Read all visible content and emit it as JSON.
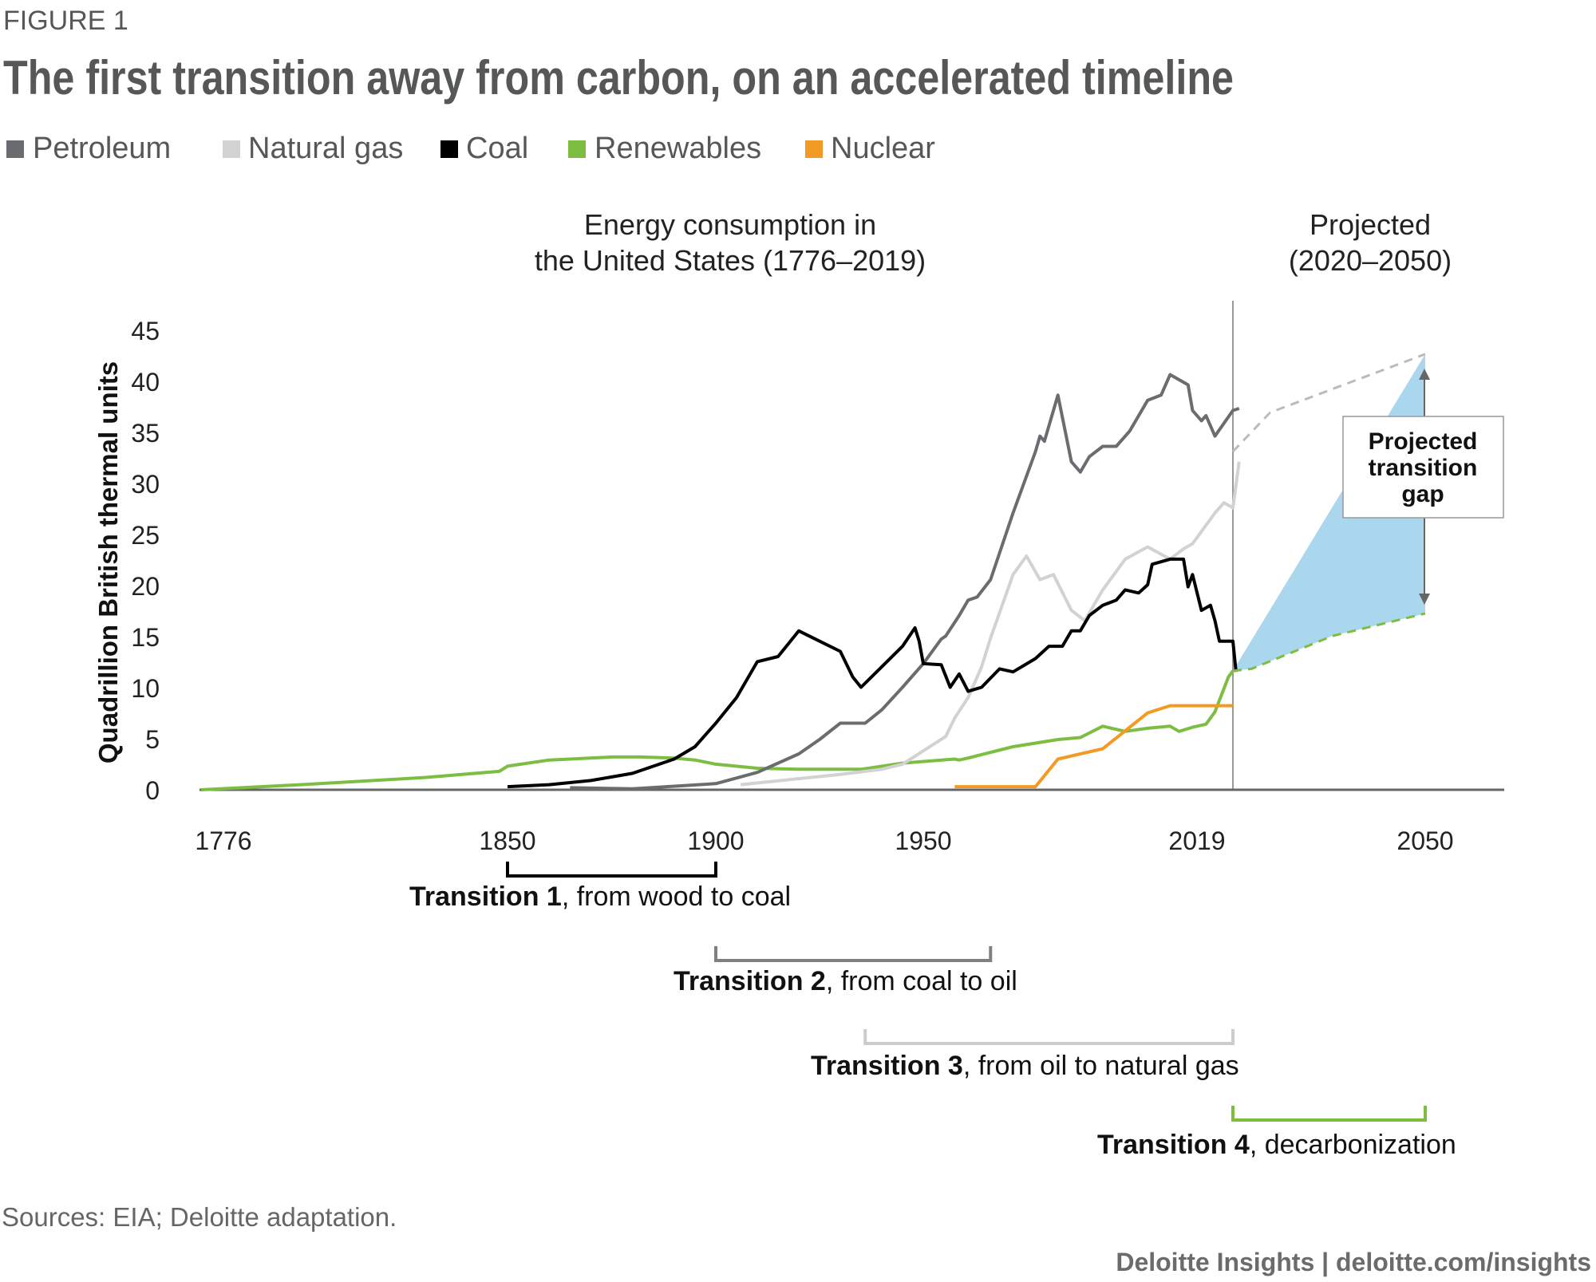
{
  "figure_label": "FIGURE 1",
  "title": "The first transition away from carbon, on an accelerated timeline",
  "legend": [
    {
      "label": "Petroleum",
      "color": "#6b6c70"
    },
    {
      "label": "Natural gas",
      "color": "#d2d2d2"
    },
    {
      "label": "Coal",
      "color": "#000000"
    },
    {
      "label": "Renewables",
      "color": "#7cbd42"
    },
    {
      "label": "Nuclear",
      "color": "#f39a24"
    }
  ],
  "section_headers": {
    "historical_line1": "Energy consumption in",
    "historical_line2": "the United States (1776–2019)",
    "projected_line1": "Projected",
    "projected_line2": "(2020–2050)"
  },
  "gap_label": {
    "line1": "Projected",
    "line2": "transition",
    "line3": "gap"
  },
  "transitions": [
    {
      "bold": "Transition 1",
      "rest": ", from wood to coal",
      "start_year": 1850,
      "end_year": 1900,
      "color": "#000000"
    },
    {
      "bold": "Transition 2",
      "rest": ", from coal to oil",
      "start_year": 1900,
      "end_year": 1965,
      "color": "#808080"
    },
    {
      "bold": "Transition 3",
      "rest": ", from oil to natural gas",
      "start_year": 1936,
      "end_year": 2019,
      "color": "#cccccc"
    },
    {
      "bold": "Transition 4",
      "rest": ", decarbonization",
      "start_year": 2019,
      "end_year": 2050,
      "color": "#7cbd42"
    }
  ],
  "source": "Sources: EIA; Deloitte adaptation.",
  "footer": "Deloitte Insights | deloitte.com/insights",
  "chart_data": {
    "type": "line",
    "title": "Energy consumption in the United States (1776–2019)",
    "ylabel": "Quadrillion British thermal units",
    "xlabel": "",
    "ylim": [
      0,
      45
    ],
    "yticks": [
      "0",
      "5",
      "10",
      "15",
      "20",
      "25",
      "30",
      "35",
      "40",
      "45"
    ],
    "xticks": [
      "1776",
      "1850",
      "1900",
      "1950",
      "2019",
      "2050"
    ],
    "series": [
      {
        "name": "Renewables",
        "color": "#7cbd42",
        "points": [
          [
            1776,
            0
          ],
          [
            1800,
            0.5
          ],
          [
            1830,
            1.2
          ],
          [
            1848,
            1.8
          ],
          [
            1850,
            2.3
          ],
          [
            1860,
            2.9
          ],
          [
            1875,
            3.2
          ],
          [
            1882,
            3.2
          ],
          [
            1890,
            3.1
          ],
          [
            1895,
            2.9
          ],
          [
            1900,
            2.5
          ],
          [
            1910,
            2.1
          ],
          [
            1920,
            2.0
          ],
          [
            1935,
            2.0
          ],
          [
            1945,
            2.6
          ],
          [
            1957,
            3.0
          ],
          [
            1958,
            2.9
          ],
          [
            1960,
            3.1
          ],
          [
            1970,
            4.2
          ],
          [
            1980,
            4.9
          ],
          [
            1985,
            5.1
          ],
          [
            1990,
            6.2
          ],
          [
            1995,
            5.7
          ],
          [
            2000,
            6.0
          ],
          [
            2005,
            6.2
          ],
          [
            2007,
            5.7
          ],
          [
            2010,
            6.1
          ],
          [
            2013,
            6.4
          ],
          [
            2015,
            7.6
          ],
          [
            2018,
            11.0
          ],
          [
            2019,
            11.6
          ]
        ]
      },
      {
        "name": "Nuclear",
        "color": "#f39a24",
        "points": [
          [
            1957,
            0.3
          ],
          [
            1975,
            0.3
          ],
          [
            1980,
            3.0
          ],
          [
            1990,
            4.0
          ],
          [
            2000,
            7.5
          ],
          [
            2005,
            8.2
          ],
          [
            2019,
            8.2
          ]
        ]
      },
      {
        "name": "Coal",
        "color": "#000000",
        "points": [
          [
            1850,
            0.3
          ],
          [
            1860,
            0.5
          ],
          [
            1870,
            0.9
          ],
          [
            1880,
            1.6
          ],
          [
            1890,
            3.0
          ],
          [
            1895,
            4.2
          ],
          [
            1900,
            6.5
          ],
          [
            1905,
            9.0
          ],
          [
            1910,
            12.5
          ],
          [
            1915,
            13.0
          ],
          [
            1920,
            15.5
          ],
          [
            1925,
            14.5
          ],
          [
            1930,
            13.5
          ],
          [
            1933,
            11.0
          ],
          [
            1935,
            10.0
          ],
          [
            1940,
            12.0
          ],
          [
            1945,
            14.0
          ],
          [
            1948,
            15.8
          ],
          [
            1949,
            14.5
          ],
          [
            1950,
            12.3
          ],
          [
            1954,
            12.2
          ],
          [
            1956,
            10.0
          ],
          [
            1958,
            11.3
          ],
          [
            1960,
            9.6
          ],
          [
            1963,
            10.0
          ],
          [
            1967,
            11.8
          ],
          [
            1970,
            11.5
          ],
          [
            1975,
            12.8
          ],
          [
            1978,
            14.0
          ],
          [
            1981,
            14.0
          ],
          [
            1983,
            15.5
          ],
          [
            1985,
            15.5
          ],
          [
            1987,
            17.0
          ],
          [
            1990,
            18.0
          ],
          [
            1993,
            18.5
          ],
          [
            1995,
            19.5
          ],
          [
            1998,
            19.2
          ],
          [
            2000,
            20.0
          ],
          [
            2001,
            22.0
          ],
          [
            2005,
            22.5
          ],
          [
            2008,
            22.5
          ],
          [
            2009,
            19.8
          ],
          [
            2010,
            21.0
          ],
          [
            2012,
            17.5
          ],
          [
            2014,
            18.0
          ],
          [
            2015,
            16.5
          ],
          [
            2016,
            14.5
          ],
          [
            2019,
            14.5
          ],
          [
            2019.5,
            11.5
          ]
        ]
      },
      {
        "name": "Petroleum",
        "color": "#6b6c70",
        "points": [
          [
            1865,
            0.2
          ],
          [
            1880,
            0.1
          ],
          [
            1900,
            0.6
          ],
          [
            1910,
            1.7
          ],
          [
            1920,
            3.5
          ],
          [
            1925,
            4.9
          ],
          [
            1930,
            6.5
          ],
          [
            1936,
            6.5
          ],
          [
            1940,
            7.8
          ],
          [
            1945,
            10.0
          ],
          [
            1950,
            12.3
          ],
          [
            1954,
            14.7
          ],
          [
            1955,
            15.0
          ],
          [
            1958,
            17.0
          ],
          [
            1960,
            18.5
          ],
          [
            1962,
            18.8
          ],
          [
            1965,
            20.5
          ],
          [
            1970,
            27.0
          ],
          [
            1975,
            33.0
          ],
          [
            1976,
            34.5
          ],
          [
            1977,
            34.0
          ],
          [
            1980,
            38.5
          ],
          [
            1983,
            32.0
          ],
          [
            1985,
            31.0
          ],
          [
            1987,
            32.5
          ],
          [
            1990,
            33.5
          ],
          [
            1993,
            33.5
          ],
          [
            1996,
            35.0
          ],
          [
            2000,
            38.0
          ],
          [
            2003,
            38.5
          ],
          [
            2005,
            40.5
          ],
          [
            2009,
            39.5
          ],
          [
            2010,
            37.0
          ],
          [
            2012,
            36.0
          ],
          [
            2013,
            36.5
          ],
          [
            2015,
            34.5
          ],
          [
            2019,
            37.0
          ],
          [
            2020,
            37.2
          ]
        ]
      },
      {
        "name": "Natural gas",
        "color": "#d2d2d2",
        "points": [
          [
            1906,
            0.5
          ],
          [
            1930,
            1.5
          ],
          [
            1940,
            2.0
          ],
          [
            1942,
            2.2
          ],
          [
            1945,
            2.5
          ],
          [
            1955,
            5.2
          ],
          [
            1957,
            7.0
          ],
          [
            1960,
            9.0
          ],
          [
            1963,
            12.0
          ],
          [
            1965,
            14.8
          ],
          [
            1970,
            21.0
          ],
          [
            1973,
            22.8
          ],
          [
            1976,
            20.5
          ],
          [
            1979,
            21.0
          ],
          [
            1983,
            17.5
          ],
          [
            1986,
            16.5
          ],
          [
            1990,
            19.5
          ],
          [
            1995,
            22.5
          ],
          [
            2000,
            23.7
          ],
          [
            2005,
            22.5
          ],
          [
            2008,
            23.5
          ],
          [
            2010,
            24.0
          ],
          [
            2015,
            27.0
          ],
          [
            2017,
            28.0
          ],
          [
            2019,
            27.5
          ],
          [
            2020,
            32.0
          ]
        ]
      }
    ],
    "projected_series": [
      {
        "name": "Natural gas (projected)",
        "color": "#bbbbbb",
        "points": [
          [
            2019,
            33.0
          ],
          [
            2025,
            36.8
          ],
          [
            2050,
            42.5
          ]
        ]
      },
      {
        "name": "Renewables (projected)",
        "color": "#7cbd42",
        "points": [
          [
            2019,
            11.6
          ],
          [
            2022,
            11.8
          ],
          [
            2035,
            15.0
          ],
          [
            2050,
            17.2
          ]
        ]
      }
    ]
  }
}
